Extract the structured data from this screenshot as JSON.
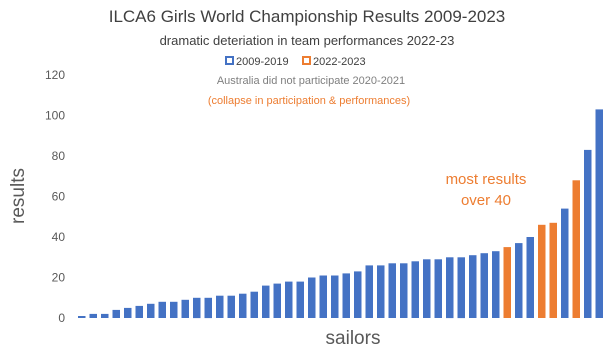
{
  "chart_data": {
    "type": "bar",
    "title": "ILCA6 Girls World Championship Results 2009-2023",
    "subtitle": "dramatic deteriation in team performances 2022-23",
    "xlabel": "sailors",
    "ylabel": "results",
    "ylim": [
      0,
      120
    ],
    "yticks": [
      0,
      20,
      40,
      60,
      80,
      100,
      120
    ],
    "grid": false,
    "legend_position": "top-center",
    "legend": [
      {
        "label": "2009-2019",
        "color": "#4472c4"
      },
      {
        "label": "2022-2023",
        "color": "#ed7d31"
      }
    ],
    "notes": [
      {
        "text": "Australia did not participate 2020-2021",
        "color": "#7f7f7f"
      },
      {
        "text": "(collapse in participation & performances)",
        "color": "#ed7d31"
      }
    ],
    "annotation": {
      "lines": [
        "most results",
        "over 40"
      ],
      "color": "#ed7d31"
    },
    "series": [
      {
        "values": [
          1,
          2,
          2,
          4,
          5,
          6,
          7,
          8,
          8,
          9,
          10,
          10,
          11,
          11,
          12,
          13,
          16,
          17,
          18,
          18,
          20,
          21,
          21,
          22,
          23,
          26,
          26,
          27,
          27,
          28,
          29,
          29,
          30,
          30,
          31,
          32,
          33,
          35,
          37,
          40,
          46,
          47,
          54,
          68,
          83,
          103
        ],
        "colors": [
          "#4472c4",
          "#4472c4",
          "#4472c4",
          "#4472c4",
          "#4472c4",
          "#4472c4",
          "#4472c4",
          "#4472c4",
          "#4472c4",
          "#4472c4",
          "#4472c4",
          "#4472c4",
          "#4472c4",
          "#4472c4",
          "#4472c4",
          "#4472c4",
          "#4472c4",
          "#4472c4",
          "#4472c4",
          "#4472c4",
          "#4472c4",
          "#4472c4",
          "#4472c4",
          "#4472c4",
          "#4472c4",
          "#4472c4",
          "#4472c4",
          "#4472c4",
          "#4472c4",
          "#4472c4",
          "#4472c4",
          "#4472c4",
          "#4472c4",
          "#4472c4",
          "#4472c4",
          "#4472c4",
          "#4472c4",
          "#ed7d31",
          "#4472c4",
          "#4472c4",
          "#ed7d31",
          "#ed7d31",
          "#4472c4",
          "#ed7d31",
          "#4472c4",
          "#4472c4"
        ]
      }
    ]
  }
}
